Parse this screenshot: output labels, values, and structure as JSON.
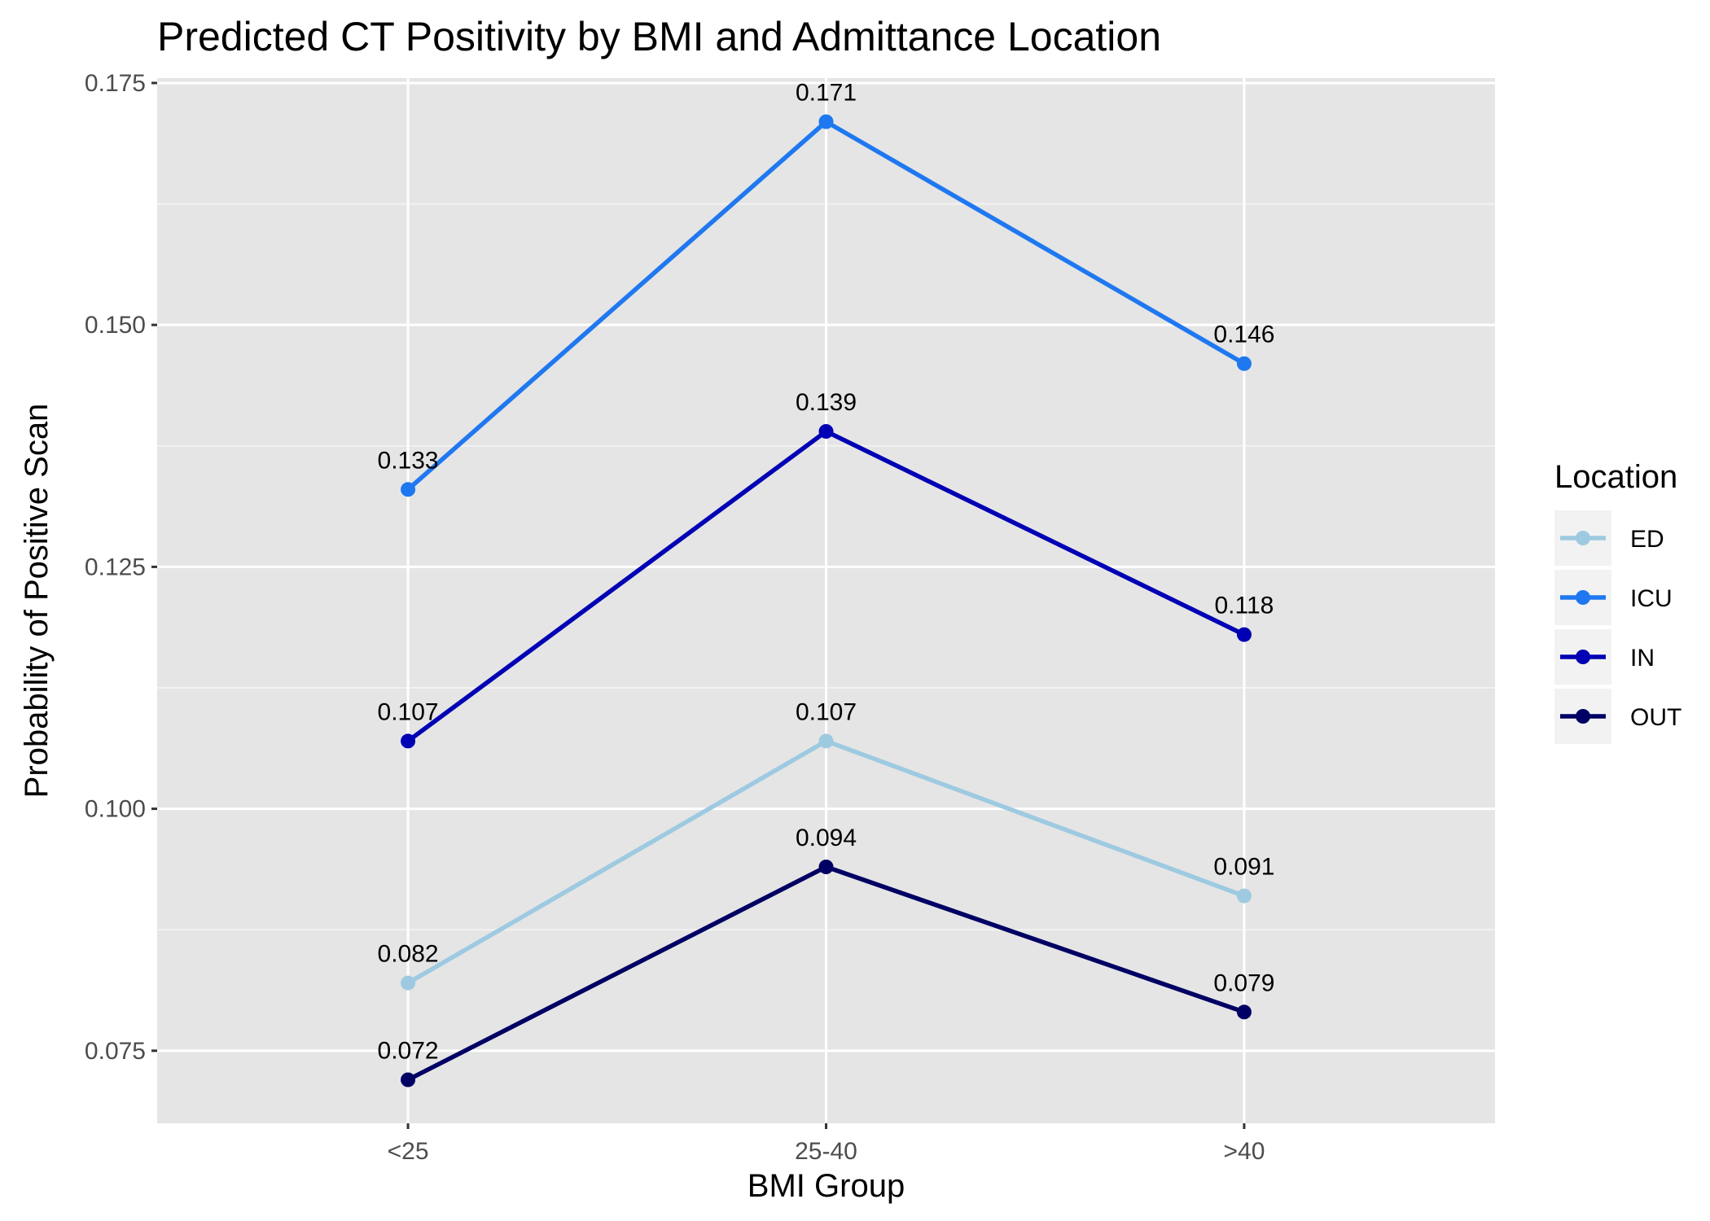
{
  "chart_data": {
    "type": "line",
    "title": "Predicted CT Positivity by BMI and Admittance Location",
    "xlabel": "BMI Group",
    "ylabel": "Probability of Positive Scan",
    "categories": [
      "<25",
      "25-40",
      ">40"
    ],
    "ylim": [
      0.0675,
      0.1755
    ],
    "yticks": [
      0.075,
      0.1,
      0.125,
      0.15,
      0.175
    ],
    "ytick_labels": [
      "0.075",
      "0.100",
      "0.125",
      "0.150",
      "0.175"
    ],
    "grid": true,
    "legend": {
      "title": "Location",
      "position": "right"
    },
    "series": [
      {
        "name": "ED",
        "color": "#9ecae1",
        "values": [
          0.082,
          0.107,
          0.091
        ],
        "labels": [
          "0.082",
          "0.107",
          "0.091"
        ]
      },
      {
        "name": "ICU",
        "color": "#1f78f0",
        "values": [
          0.133,
          0.171,
          0.146
        ],
        "labels": [
          "0.133",
          "0.171",
          "0.146"
        ]
      },
      {
        "name": "IN",
        "color": "#0000b4",
        "values": [
          0.107,
          0.139,
          0.118
        ],
        "labels": [
          "0.107",
          "0.139",
          "0.118"
        ]
      },
      {
        "name": "OUT",
        "color": "#000064",
        "values": [
          0.072,
          0.094,
          0.079
        ],
        "labels": [
          "0.072",
          "0.094",
          "0.079"
        ]
      }
    ]
  }
}
